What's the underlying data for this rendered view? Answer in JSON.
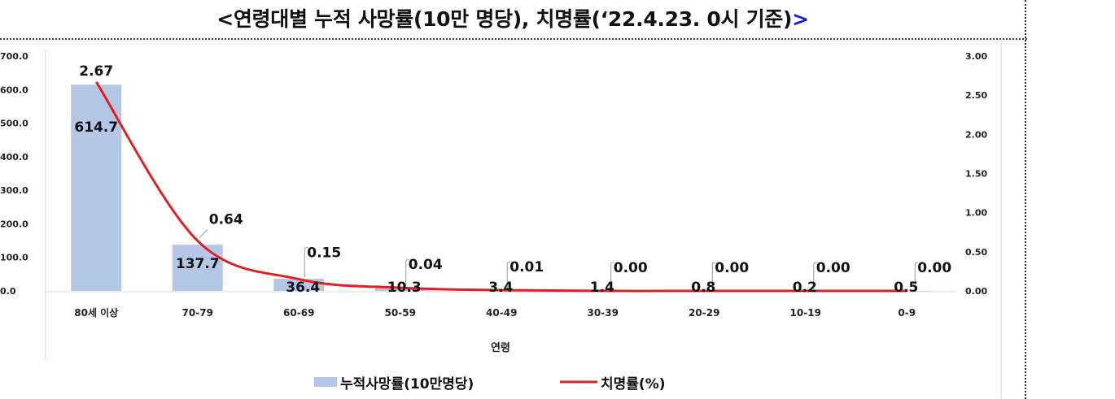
{
  "title_main": "<연령대별 누적 사망률(10만 명당), 치명률(‘22.4.23. 0시 기준)",
  "title_gt": ">",
  "chart_data": {
    "type": "bar",
    "categories": [
      "80세 이상",
      "70-79",
      "60-69",
      "50-59",
      "40-49",
      "30-39",
      "20-29",
      "10-19",
      "0-9"
    ],
    "series": [
      {
        "name": "누적사망률(10만명당)",
        "type": "bar",
        "axis": "left",
        "values": [
          614.7,
          137.7,
          36.4,
          10.3,
          3.4,
          1.4,
          0.8,
          0.2,
          0.5
        ],
        "labels": [
          "614.7",
          "137.7",
          "36.4",
          "10.3",
          "3.4",
          "1.4",
          "0.8",
          "0.2",
          "0.5"
        ],
        "color": "#b4c7e7"
      },
      {
        "name": "치명률(%)",
        "type": "line",
        "axis": "right",
        "values": [
          2.67,
          0.64,
          0.15,
          0.04,
          0.01,
          0.0,
          0.0,
          0.0,
          0.0
        ],
        "labels": [
          "2.67",
          "0.64",
          "0.15",
          "0.04",
          "0.01",
          "0.00",
          "0.00",
          "0.00",
          "0.00"
        ],
        "color": "#e02020"
      }
    ],
    "xlabel": "연령",
    "ylim": [
      0,
      700
    ],
    "y_ticks": [
      "0.0",
      "100.0",
      "200.0",
      "300.0",
      "400.0",
      "500.0",
      "600.0",
      "700.0"
    ],
    "y2lim": [
      0,
      3
    ],
    "y2_ticks": [
      "0.00",
      "0.50",
      "1.00",
      "1.50",
      "2.00",
      "2.50",
      "3.00"
    ],
    "grid": false,
    "legend_position": "bottom"
  }
}
